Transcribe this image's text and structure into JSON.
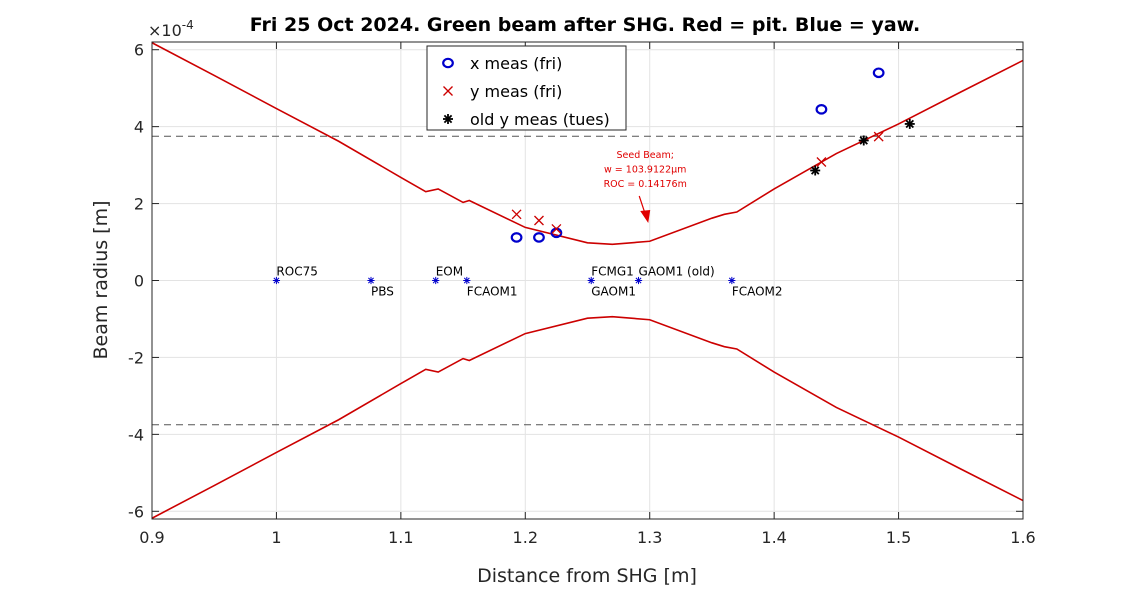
{
  "chart_data": {
    "type": "line",
    "title": "Fri 25 Oct 2024. Green beam after SHG. Red = pit. Blue = yaw.",
    "xlabel": "Distance from SHG [m]",
    "ylabel": "Beam radius [m]",
    "y_exponent": "×10",
    "y_exponent_power": "-4",
    "xlim": [
      0.9,
      1.6
    ],
    "ylim": [
      -6.2,
      6.2
    ],
    "xticks": [
      0.9,
      1.0,
      1.1,
      1.2,
      1.3,
      1.4,
      1.5,
      1.6
    ],
    "xtick_labels": [
      "0.9",
      "1",
      "1.1",
      "1.2",
      "1.3",
      "1.4",
      "1.5",
      "1.6"
    ],
    "yticks": [
      -6,
      -4,
      -2,
      0,
      2,
      4,
      6
    ],
    "ytick_labels": [
      "-6",
      "-4",
      "-2",
      "0",
      "2",
      "4",
      "6"
    ],
    "grid": true,
    "legend_position": "top-center",
    "colors": {
      "pitch": "#cc0000",
      "yaw": "#0000cc",
      "old": "#000000",
      "component": "#0000cc",
      "dashed": "#555555",
      "annotation": "#e00000"
    },
    "beam_envelope": {
      "name": "pit",
      "x": [
        0.9,
        0.95,
        1.0,
        1.05,
        1.1,
        1.12,
        1.13,
        1.15,
        1.155,
        1.2,
        1.25,
        1.27,
        1.3,
        1.35,
        1.36,
        1.37,
        1.4,
        1.45,
        1.5,
        1.55,
        1.6
      ],
      "upper": [
        6.18,
        5.33,
        4.47,
        3.62,
        2.68,
        2.31,
        2.38,
        2.03,
        2.08,
        1.38,
        0.98,
        0.94,
        1.02,
        1.62,
        1.72,
        1.78,
        2.38,
        3.3,
        4.07,
        4.9,
        5.72
      ],
      "lower": [
        -6.18,
        -5.33,
        -4.47,
        -3.62,
        -2.68,
        -2.31,
        -2.38,
        -2.03,
        -2.08,
        -1.38,
        -0.98,
        -0.94,
        -1.02,
        -1.62,
        -1.72,
        -1.78,
        -2.38,
        -3.3,
        -4.07,
        -4.9,
        -5.72
      ]
    },
    "dashed_lines": [
      3.75,
      -3.75
    ],
    "series": [
      {
        "name": "x meas (fri)",
        "marker": "circle",
        "x": [
          1.193,
          1.211,
          1.225,
          1.438,
          1.484
        ],
        "y": [
          1.12,
          1.12,
          1.24,
          4.45,
          5.4
        ]
      },
      {
        "name": "y meas (fri)",
        "marker": "x",
        "x": [
          1.193,
          1.211,
          1.225,
          1.438,
          1.484
        ],
        "y": [
          1.72,
          1.56,
          1.34,
          3.08,
          3.74
        ]
      },
      {
        "name": "old y meas (tues)",
        "marker": "star",
        "x": [
          1.433,
          1.472,
          1.509
        ],
        "y": [
          2.86,
          3.64,
          4.07
        ]
      }
    ],
    "components": [
      {
        "label": "ROC75",
        "x": 1.0,
        "pos": "above"
      },
      {
        "label": "PBS",
        "x": 1.076,
        "pos": "below"
      },
      {
        "label": "EOM",
        "x": 1.128,
        "pos": "above"
      },
      {
        "label": "FCAOM1",
        "x": 1.153,
        "pos": "below"
      },
      {
        "label": "FCMG1",
        "x": 1.253,
        "pos": "above"
      },
      {
        "label": "GAOM1",
        "x": 1.253,
        "pos": "below"
      },
      {
        "label": "GAOM1 (old)",
        "x": 1.291,
        "pos": "above"
      },
      {
        "label": "FCAOM2",
        "x": 1.366,
        "pos": "below"
      }
    ],
    "annotation": {
      "lines": [
        "Seed Beam;",
        "w = 103.9122μm",
        "ROC = 0.14176m"
      ],
      "arrow_tip": [
        1.298,
        1.52
      ]
    }
  }
}
